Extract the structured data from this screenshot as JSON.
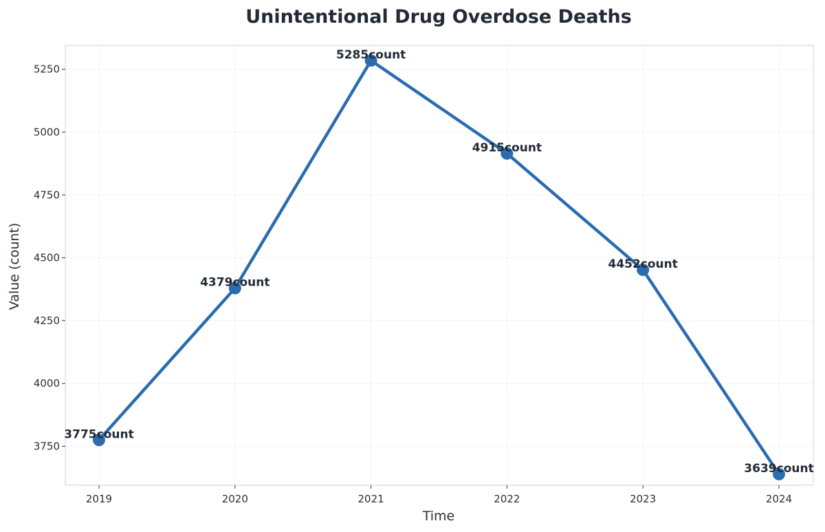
{
  "chart_data": {
    "type": "line",
    "title": "Unintentional Drug Overdose Deaths",
    "xlabel": "Time",
    "ylabel": "Value (count)",
    "categories": [
      "2019",
      "2020",
      "2021",
      "2022",
      "2023",
      "2024"
    ],
    "series": [
      {
        "values": [
          3775,
          4379,
          5285,
          4915,
          4452,
          3639
        ],
        "labels": [
          "3775count",
          "4379count",
          "5285count",
          "4915count",
          "4452count",
          "3639count"
        ],
        "color": "#2b6cb0"
      }
    ],
    "y_ticks": [
      3750,
      4000,
      4250,
      4500,
      4750,
      5000,
      5250
    ],
    "y_tick_labels": [
      "3750",
      "4000",
      "4250",
      "4500",
      "4750",
      "5000",
      "5250"
    ],
    "ylim": [
      3595,
      5345
    ],
    "grid": true,
    "legend": "none"
  }
}
